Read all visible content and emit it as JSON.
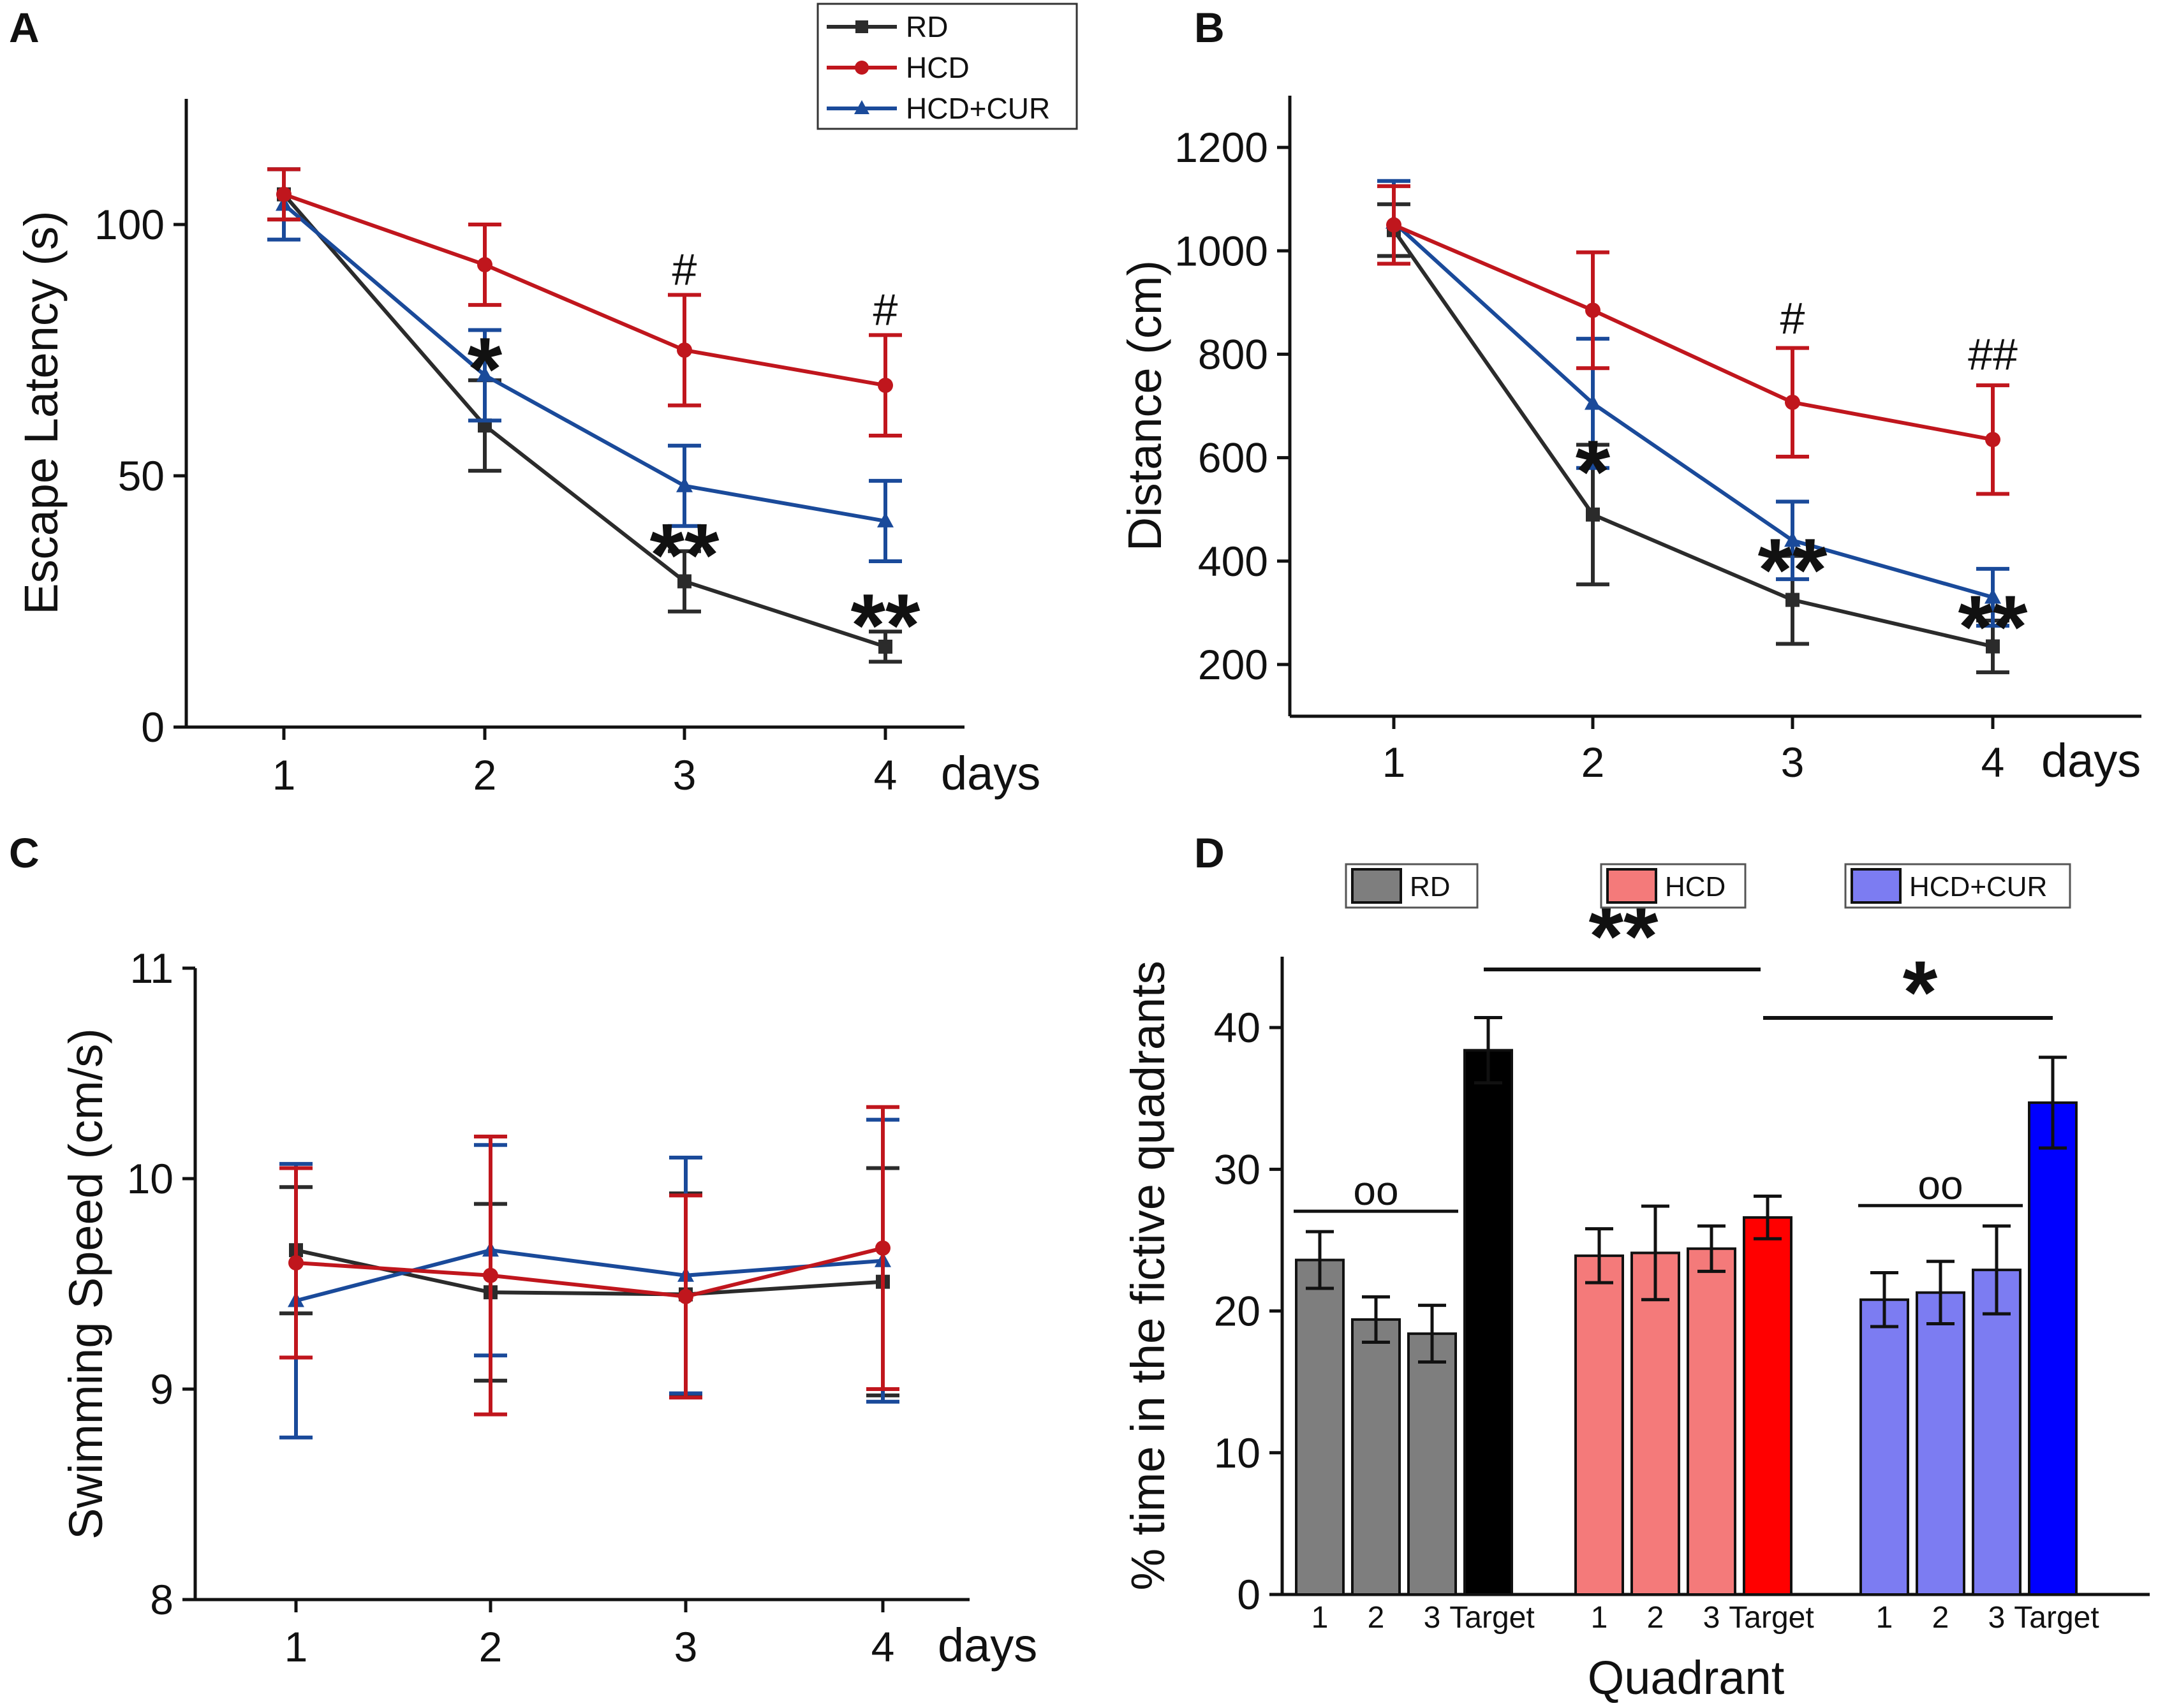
{
  "colors": {
    "RD": "#2b2b2b",
    "HCD": "#c0161d",
    "HCD+CUR": "#1a4a9a"
  },
  "bar_colors": {
    "RD": {
      "quadrant": "#7e7e7e",
      "target": "#000000"
    },
    "HCD": {
      "quadrant": "#f47a7a",
      "target": "#ff0000"
    },
    "HCD+CUR": {
      "quadrant": "#7c7cf2",
      "target": "#0000ff"
    }
  },
  "chart_data": [
    {
      "panel": "A",
      "type": "line",
      "xlabel": "days",
      "ylabel": "Escape Latency (s)",
      "x": [
        1,
        2,
        3,
        4
      ],
      "ylim": [
        0,
        125
      ],
      "yticks": [
        0,
        50,
        100
      ],
      "legend": [
        "RD",
        "HCD",
        "HCD+CUR"
      ],
      "legend_position": "top-right",
      "series": [
        {
          "name": "RD",
          "marker": "square",
          "values": [
            106,
            60,
            29,
            16
          ],
          "errors": [
            5,
            9,
            6,
            3
          ]
        },
        {
          "name": "HCD",
          "marker": "circle",
          "values": [
            106,
            92,
            75,
            68
          ],
          "errors": [
            5,
            8,
            11,
            10
          ]
        },
        {
          "name": "HCD+CUR",
          "marker": "triangle",
          "values": [
            104,
            70,
            48,
            41
          ],
          "errors": [
            7,
            9,
            8,
            8
          ]
        }
      ],
      "annotations": [
        {
          "x": 2,
          "y": 73,
          "text": "*",
          "kind": "star"
        },
        {
          "x": 3,
          "y": 36,
          "text": "**",
          "kind": "star"
        },
        {
          "x": 4,
          "y": 22,
          "text": "**",
          "kind": "star"
        },
        {
          "x": 3,
          "y": 88,
          "text": "#",
          "kind": "hash"
        },
        {
          "x": 4,
          "y": 80,
          "text": "#",
          "kind": "hash"
        }
      ]
    },
    {
      "panel": "B",
      "type": "line",
      "xlabel": "days",
      "ylabel": "Distance (cm)",
      "x": [
        1,
        2,
        3,
        4
      ],
      "ylim": [
        100,
        1300
      ],
      "yticks": [
        200,
        400,
        600,
        800,
        1000,
        1200
      ],
      "series": [
        {
          "name": "RD",
          "marker": "square",
          "values": [
            1040,
            490,
            325,
            235
          ],
          "errors": [
            50,
            135,
            85,
            50
          ]
        },
        {
          "name": "HCD",
          "marker": "circle",
          "values": [
            1050,
            885,
            707,
            635
          ],
          "errors": [
            75,
            112,
            105,
            105
          ]
        },
        {
          "name": "HCD+CUR",
          "marker": "triangle",
          "values": [
            1055,
            705,
            440,
            330
          ],
          "errors": [
            80,
            125,
            75,
            55
          ]
        }
      ],
      "annotations": [
        {
          "x": 2,
          "y": 590,
          "text": "*",
          "kind": "star"
        },
        {
          "x": 3,
          "y": 400,
          "text": "**",
          "kind": "star"
        },
        {
          "x": 4,
          "y": 290,
          "text": "**",
          "kind": "star"
        },
        {
          "x": 3,
          "y": 840,
          "text": "#",
          "kind": "hash"
        },
        {
          "x": 4,
          "y": 770,
          "text": "##",
          "kind": "hash"
        }
      ]
    },
    {
      "panel": "C",
      "type": "line",
      "xlabel": "days",
      "ylabel": "Swimming Speed (cm/s)",
      "x": [
        1,
        2,
        3,
        4
      ],
      "ylim": [
        8,
        11
      ],
      "yticks": [
        8,
        9,
        10,
        11
      ],
      "series": [
        {
          "name": "RD",
          "marker": "square",
          "values": [
            9.66,
            9.46,
            9.45,
            9.51
          ],
          "errors": [
            0.3,
            0.42,
            0.48,
            0.54
          ]
        },
        {
          "name": "HCD",
          "marker": "circle",
          "values": [
            9.6,
            9.54,
            9.44,
            9.67
          ],
          "errors": [
            0.45,
            0.66,
            0.48,
            0.67
          ]
        },
        {
          "name": "HCD+CUR",
          "marker": "triangle",
          "values": [
            9.42,
            9.66,
            9.54,
            9.61
          ],
          "errors": [
            0.65,
            0.5,
            0.56,
            0.67
          ]
        }
      ]
    },
    {
      "panel": "D",
      "type": "bar",
      "xlabel": "Quadrant",
      "ylabel": "% time in the fictive quadrants",
      "ylim": [
        0,
        45
      ],
      "yticks": [
        0,
        10,
        20,
        30,
        40
      ],
      "categories": [
        "1",
        "2",
        "3",
        "Target"
      ],
      "legend": [
        "RD",
        "HCD",
        "HCD+CUR"
      ],
      "legend_position": "top",
      "series": [
        {
          "name": "RD",
          "values": [
            23.6,
            19.4,
            18.4,
            38.4
          ],
          "errors": [
            2.0,
            1.6,
            2.0,
            2.3
          ]
        },
        {
          "name": "HCD",
          "values": [
            23.9,
            24.1,
            24.4,
            26.6
          ],
          "errors": [
            1.9,
            3.3,
            1.6,
            1.5
          ]
        },
        {
          "name": "HCD+CUR",
          "values": [
            20.8,
            21.3,
            22.9,
            34.7
          ],
          "errors": [
            1.9,
            2.2,
            3.1,
            3.2
          ]
        }
      ],
      "annotations": [
        {
          "text": "oo",
          "group": "RD",
          "over": "quadrants 1-3"
        },
        {
          "text": "oo",
          "group": "HCD+CUR",
          "over": "quadrants 1-3"
        },
        {
          "text": "**",
          "between": "RD Target and HCD Target"
        },
        {
          "text": "*",
          "between": "HCD Target and HCD+CUR Target"
        }
      ]
    }
  ]
}
